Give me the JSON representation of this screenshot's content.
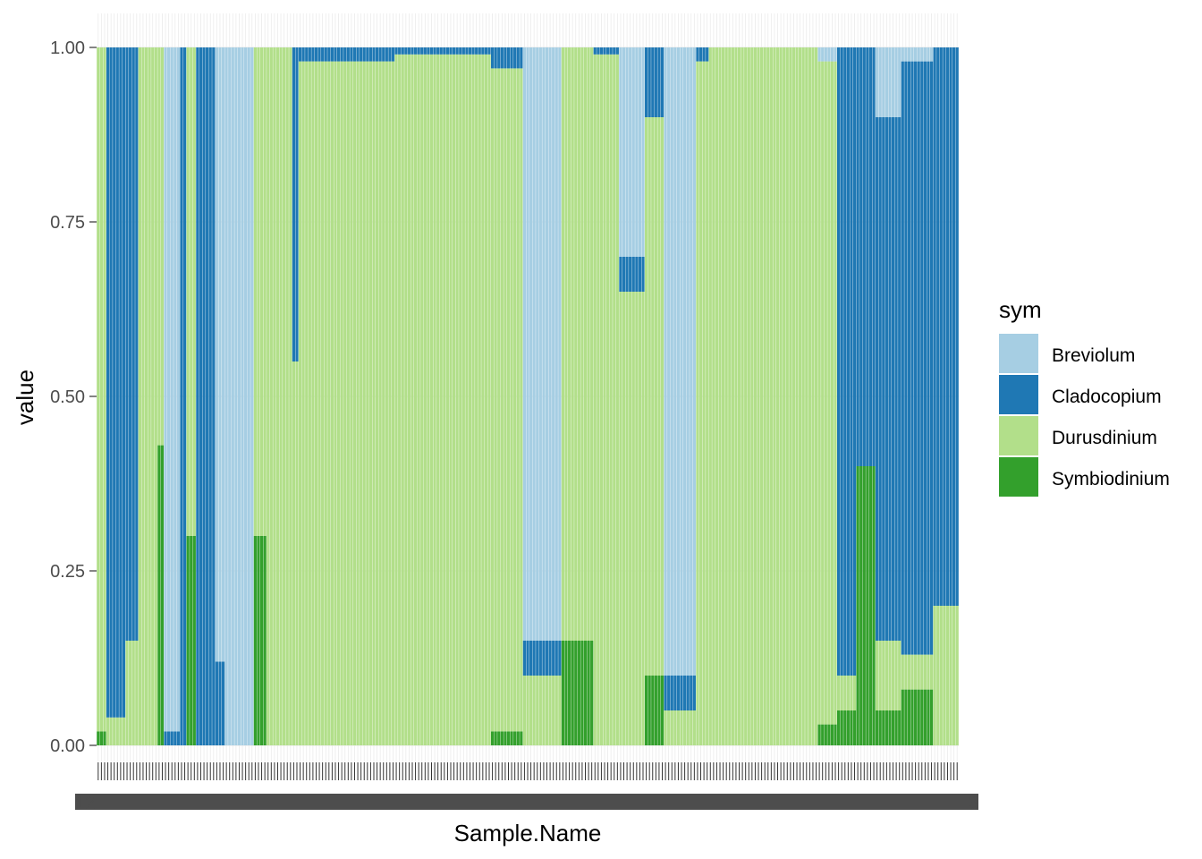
{
  "chart_data": {
    "type": "bar",
    "stacked": true,
    "xlabel": "Sample.Name",
    "ylabel": "value",
    "ylim": [
      0,
      1
    ],
    "y_ticks": [
      "0.00",
      "0.25",
      "0.50",
      "0.75",
      "1.00"
    ],
    "y_tick_values": [
      0,
      0.25,
      0.5,
      0.75,
      1.0
    ],
    "x_tick_labels_overlapping": true,
    "x_tick_first_label": "12",
    "x_tick_last_label": "3",
    "legend": {
      "title": "sym",
      "position": "right",
      "entries": [
        {
          "name": "Breviolum",
          "color": "#A6CEE3"
        },
        {
          "name": "Cladocopium",
          "color": "#1F78B4"
        },
        {
          "name": "Durusdinium",
          "color": "#B2DF8A"
        },
        {
          "name": "Symbiodinium",
          "color": "#33A02C"
        }
      ]
    },
    "stack_order_top_to_bottom": [
      "Breviolum",
      "Cladocopium",
      "Durusdinium",
      "Symbiodinium"
    ],
    "grid": true,
    "samples_note": "approximately 300 samples; proportions approximated by region",
    "segments": [
      {
        "n": 3,
        "B": 0.0,
        "C": 0.0,
        "D": 0.98,
        "S": 0.02
      },
      {
        "n": 6,
        "B": 0.0,
        "C": 0.96,
        "D": 0.04,
        "S": 0.0
      },
      {
        "n": 4,
        "B": 0.0,
        "C": 0.85,
        "D": 0.15,
        "S": 0.0
      },
      {
        "n": 6,
        "B": 0.0,
        "C": 0.0,
        "D": 1.0,
        "S": 0.0
      },
      {
        "n": 2,
        "B": 0.0,
        "C": 0.0,
        "D": 0.57,
        "S": 0.43
      },
      {
        "n": 5,
        "B": 0.98,
        "C": 0.02,
        "D": 0.0,
        "S": 0.0
      },
      {
        "n": 2,
        "B": 0.0,
        "C": 1.0,
        "D": 0.0,
        "S": 0.0
      },
      {
        "n": 3,
        "B": 0.0,
        "C": 0.0,
        "D": 0.7,
        "S": 0.3
      },
      {
        "n": 6,
        "B": 0.0,
        "C": 1.0,
        "D": 0.0,
        "S": 0.0
      },
      {
        "n": 3,
        "B": 0.88,
        "C": 0.12,
        "D": 0.0,
        "S": 0.0
      },
      {
        "n": 9,
        "B": 1.0,
        "C": 0.0,
        "D": 0.0,
        "S": 0.0
      },
      {
        "n": 4,
        "B": 0.0,
        "C": 0.0,
        "D": 0.7,
        "S": 0.3
      },
      {
        "n": 8,
        "B": 0.0,
        "C": 0.0,
        "D": 1.0,
        "S": 0.0
      },
      {
        "n": 2,
        "B": 0.0,
        "C": 0.45,
        "D": 0.55,
        "S": 0.0
      },
      {
        "n": 30,
        "B": 0.0,
        "C": 0.02,
        "D": 0.98,
        "S": 0.0
      },
      {
        "n": 30,
        "B": 0.0,
        "C": 0.01,
        "D": 0.99,
        "S": 0.0
      },
      {
        "n": 10,
        "B": 0.0,
        "C": 0.03,
        "D": 0.95,
        "S": 0.02
      },
      {
        "n": 12,
        "B": 0.85,
        "C": 0.05,
        "D": 0.1,
        "S": 0.0
      },
      {
        "n": 10,
        "B": 0.0,
        "C": 0.0,
        "D": 0.85,
        "S": 0.15
      },
      {
        "n": 8,
        "B": 0.0,
        "C": 0.01,
        "D": 0.99,
        "S": 0.0
      },
      {
        "n": 8,
        "B": 0.3,
        "C": 0.05,
        "D": 0.65,
        "S": 0.0
      },
      {
        "n": 6,
        "B": 0.0,
        "C": 0.1,
        "D": 0.8,
        "S": 0.1
      },
      {
        "n": 10,
        "B": 0.9,
        "C": 0.05,
        "D": 0.05,
        "S": 0.0
      },
      {
        "n": 4,
        "B": 0.0,
        "C": 0.02,
        "D": 0.98,
        "S": 0.0
      },
      {
        "n": 34,
        "B": 0.0,
        "C": 0.0,
        "D": 1.0,
        "S": 0.0
      },
      {
        "n": 6,
        "B": 0.02,
        "C": 0.0,
        "D": 0.95,
        "S": 0.03
      },
      {
        "n": 6,
        "B": 0.0,
        "C": 0.9,
        "D": 0.05,
        "S": 0.05
      },
      {
        "n": 6,
        "B": 0.0,
        "C": 0.6,
        "D": 0.0,
        "S": 0.4
      },
      {
        "n": 8,
        "B": 0.1,
        "C": 0.75,
        "D": 0.1,
        "S": 0.05
      },
      {
        "n": 10,
        "B": 0.02,
        "C": 0.85,
        "D": 0.05,
        "S": 0.08
      },
      {
        "n": 8,
        "B": 0.0,
        "C": 0.8,
        "D": 0.2,
        "S": 0.0
      }
    ]
  }
}
